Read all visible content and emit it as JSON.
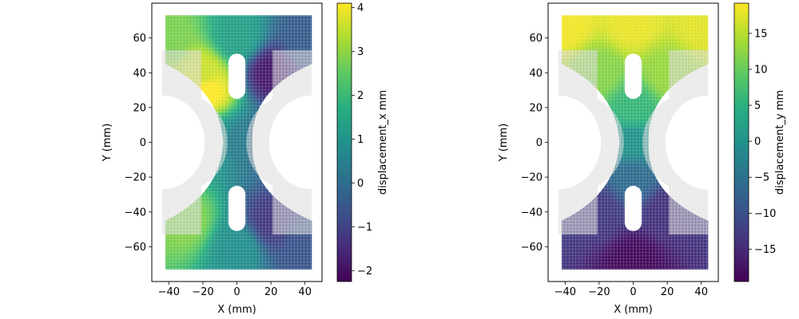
{
  "chart_data": [
    {
      "type": "scatter",
      "title": "",
      "xlabel": "X (mm)",
      "ylabel": "Y (mm)",
      "xlim": [
        -50,
        50
      ],
      "ylim": [
        -80,
        80
      ],
      "xticks": [
        -40,
        -20,
        0,
        20,
        40
      ],
      "yticks": [
        -60,
        -40,
        -20,
        0,
        20,
        40,
        60
      ],
      "colorbar": {
        "label": "displacement_x mm",
        "range": [
          -2.25,
          4.1
        ],
        "ticks": [
          -2,
          -1,
          0,
          1,
          2,
          3,
          4
        ],
        "colormap": "viridis"
      },
      "series": [
        {
          "kind": "deformed-mesh-colored",
          "field": "displacement_x",
          "points": [
            {
              "x": -40,
              "y": 60,
              "v": 2.8
            },
            {
              "x": -20,
              "y": 40,
              "v": 3.6
            },
            {
              "x": -17,
              "y": 30,
              "v": 4.1
            },
            {
              "x": 0,
              "y": 60,
              "v": 1.3
            },
            {
              "x": 20,
              "y": 40,
              "v": -1.8
            },
            {
              "x": 40,
              "y": 60,
              "v": -0.4
            },
            {
              "x": -15,
              "y": 0,
              "v": 1.5
            },
            {
              "x": 0,
              "y": 0,
              "v": 0.4
            },
            {
              "x": 15,
              "y": 0,
              "v": -0.3
            },
            {
              "x": -30,
              "y": -45,
              "v": 2.9
            },
            {
              "x": 0,
              "y": -60,
              "v": 0.9
            },
            {
              "x": 20,
              "y": -45,
              "v": -1.2
            },
            {
              "x": 40,
              "y": -60,
              "v": -0.6
            }
          ]
        },
        {
          "kind": "undeformed-mesh",
          "color": "#d9d9d9"
        }
      ]
    },
    {
      "type": "scatter",
      "title": "",
      "xlabel": "X (mm)",
      "ylabel": "Y (mm)",
      "xlim": [
        -50,
        50
      ],
      "ylim": [
        -80,
        80
      ],
      "xticks": [
        -40,
        -20,
        0,
        20,
        40
      ],
      "yticks": [
        -60,
        -40,
        -20,
        0,
        20,
        40,
        60
      ],
      "colorbar": {
        "label": "displacement_y mm",
        "range": [
          -19.5,
          19.2
        ],
        "ticks": [
          -15,
          -10,
          -5,
          0,
          5,
          10,
          15
        ],
        "colormap": "viridis"
      },
      "series": [
        {
          "kind": "deformed-mesh-colored",
          "field": "displacement_y",
          "points": [
            {
              "x": -40,
              "y": 68,
              "v": 18.5
            },
            {
              "x": 0,
              "y": 68,
              "v": 18.0
            },
            {
              "x": 40,
              "y": 68,
              "v": 17.5
            },
            {
              "x": -20,
              "y": 40,
              "v": 12.0
            },
            {
              "x": 20,
              "y": 40,
              "v": 13.0
            },
            {
              "x": 0,
              "y": 20,
              "v": 6.0
            },
            {
              "x": 0,
              "y": 0,
              "v": 0.0
            },
            {
              "x": 0,
              "y": -20,
              "v": -6.0
            },
            {
              "x": -20,
              "y": -40,
              "v": -13.0
            },
            {
              "x": 20,
              "y": -40,
              "v": -14.0
            },
            {
              "x": 0,
              "y": -68,
              "v": -18.5
            }
          ]
        },
        {
          "kind": "undeformed-mesh",
          "color": "#d9d9d9"
        }
      ]
    }
  ]
}
